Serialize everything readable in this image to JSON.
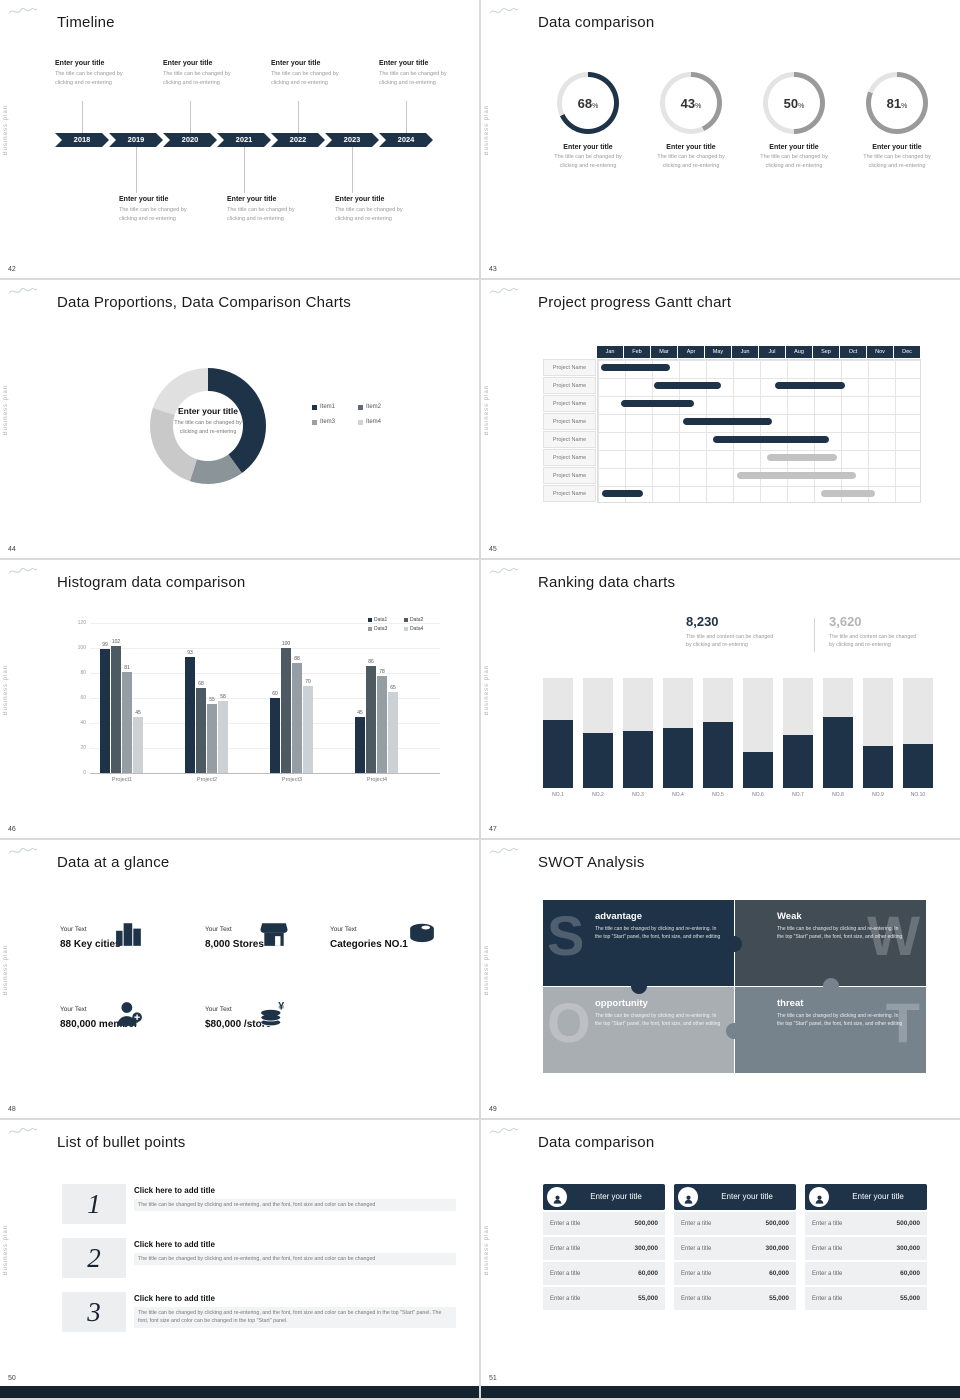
{
  "theme": {
    "dark": "#1e3347",
    "bar_gray": "#c2c2c2",
    "panel": "#eef0f1"
  },
  "common": {
    "side_label": "Business plan",
    "entry_title": "Enter your title",
    "entry_desc_l1": "The title can be changed by",
    "entry_desc_l2": "clicking and re-entering"
  },
  "slides": {
    "s42": {
      "page": "42",
      "title": "Timeline",
      "years": [
        "2018",
        "2019",
        "2020",
        "2021",
        "2022",
        "2023",
        "2024"
      ],
      "top_entries": [
        0,
        2,
        4,
        6
      ],
      "bottom_entries": [
        1,
        3,
        5
      ]
    },
    "s43": {
      "page": "43",
      "title": "Data comparison",
      "chart_data": {
        "type": "donut",
        "values": [
          68,
          43,
          50,
          81
        ],
        "unit": "%",
        "colors": [
          "#1e3347",
          "#9a9a9a",
          "#9a9a9a",
          "#9a9a9a"
        ],
        "track": "#e4e4e4"
      }
    },
    "s44": {
      "page": "44",
      "title": "Data Proportions, Data Comparison Charts",
      "center_title": "Enter your title",
      "center_desc_l1": "The title can be changed by",
      "center_desc_l2": "clicking and re-entering",
      "chart_data": {
        "type": "pie",
        "labels": [
          "Item1",
          "Item2",
          "Item3",
          "Item4"
        ],
        "values": [
          40,
          15,
          25,
          20
        ],
        "colors": [
          "#1e3347",
          "#8b9499",
          "#c9c9c9",
          "#e0e0e0"
        ],
        "legend_colors": [
          "#1e3347",
          "#5f6a72",
          "#9aa1a6",
          "#d2d2d2"
        ]
      }
    },
    "s45": {
      "page": "45",
      "title": "Project progress Gantt chart",
      "months": [
        "Jan",
        "Feb",
        "Mar",
        "Apr",
        "May",
        "Jun",
        "Jul",
        "Aug",
        "Sep",
        "Oct",
        "Nov",
        "Dec"
      ],
      "row_label": "Project Name",
      "rows": 8,
      "bars": [
        {
          "row": 0,
          "start": 0.15,
          "end": 2.7,
          "color": "dark"
        },
        {
          "row": 1,
          "start": 2.1,
          "end": 4.6,
          "color": "dark"
        },
        {
          "row": 1,
          "start": 6.6,
          "end": 9.2,
          "color": "dark"
        },
        {
          "row": 2,
          "start": 0.9,
          "end": 3.6,
          "color": "dark"
        },
        {
          "row": 3,
          "start": 3.2,
          "end": 6.5,
          "color": "dark"
        },
        {
          "row": 4,
          "start": 4.3,
          "end": 8.6,
          "color": "dark"
        },
        {
          "row": 5,
          "start": 6.3,
          "end": 8.9,
          "color": "gray"
        },
        {
          "row": 6,
          "start": 5.2,
          "end": 9.6,
          "color": "gray"
        },
        {
          "row": 7,
          "start": 0.2,
          "end": 1.7,
          "color": "dark"
        },
        {
          "row": 7,
          "start": 8.3,
          "end": 10.3,
          "color": "gray"
        }
      ]
    },
    "s46": {
      "page": "46",
      "title": "Histogram data comparison",
      "chart_data": {
        "type": "bar",
        "categories": [
          "Project1",
          "Project2",
          "Project3",
          "Project4"
        ],
        "series": [
          {
            "name": "Data1",
            "values": [
              99,
              93,
              60,
              45
            ],
            "color": "#1e3347"
          },
          {
            "name": "Data2",
            "values": [
              102,
              68,
              100,
              86
            ],
            "color": "#4e5a62"
          },
          {
            "name": "Data3",
            "values": [
              81,
              55,
              88,
              78
            ],
            "color": "#959ea4"
          },
          {
            "name": "Data4",
            "values": [
              45,
              58,
              70,
              65
            ],
            "color": "#cbd1d4"
          }
        ],
        "ylim": [
          0,
          120
        ],
        "yticks": [
          0,
          20,
          40,
          60,
          80,
          100,
          120
        ]
      }
    },
    "s47": {
      "page": "47",
      "title": "Ranking data charts",
      "stat1": {
        "value": "8,230",
        "desc_l1": "The title and content can be changed",
        "desc_l2": "by clicking and re-entering"
      },
      "stat2": {
        "value": "3,620",
        "desc_l1": "The title and content can be changed",
        "desc_l2": "by clicking and re-entering"
      },
      "chart_data": {
        "type": "bar",
        "categories": [
          "NO.1",
          "NO.2",
          "NO.3",
          "NO.4",
          "NO.5",
          "NO.6",
          "NO.7",
          "NO.8",
          "NO.9",
          "NO.10"
        ],
        "values": [
          62,
          50,
          52,
          55,
          60,
          33,
          48,
          65,
          38,
          40
        ],
        "ylim": [
          0,
          100
        ]
      }
    },
    "s48": {
      "page": "48",
      "title": "Data at a glance",
      "items": [
        {
          "icon": "city-icon",
          "label": "Your Text",
          "value": "88 Key cities"
        },
        {
          "icon": "store-icon",
          "label": "Your Text",
          "value": "8,000 Stores"
        },
        {
          "icon": "categories-icon",
          "label": "Your Text",
          "value": "Categories NO.1"
        },
        {
          "icon": "member-icon",
          "label": "Your Text",
          "value": "880,000 member"
        },
        {
          "icon": "coins-icon",
          "label": "Your Text",
          "value": "$80,000 /store"
        }
      ]
    },
    "s49": {
      "page": "49",
      "title": "SWOT Analysis",
      "quadrants": [
        {
          "letter": "S",
          "name": "advantage",
          "desc": "The title can be changed by clicking and re-entering. In the top \"Start\" panel, the font, font size, and other editing",
          "bg": "#1e3347",
          "letter_side": "left"
        },
        {
          "letter": "W",
          "name": "Weak",
          "desc": "The title can be changed by clicking and re-entering. In the top \"Start\" panel, the font, font size, and other editing",
          "bg": "#414c55",
          "letter_side": "right"
        },
        {
          "letter": "O",
          "name": "opportunity",
          "desc": "The title can be changed by clicking and re-entering. In the top \"Start\" panel, the font, font size, and other editing",
          "bg": "#a9aeb2",
          "letter_side": "left"
        },
        {
          "letter": "T",
          "name": "threat",
          "desc": "The title can be changed by clicking and re-entering. In the top \"Start\" panel, the font, font size, and other editing",
          "bg": "#76838d",
          "letter_side": "right"
        }
      ]
    },
    "s50": {
      "page": "50",
      "title": "List of bullet points",
      "items": [
        {
          "num": "1",
          "title": "Click here to add title",
          "desc": "The title can be changed by clicking and re-entering, and the font, font size and color can be changed"
        },
        {
          "num": "2",
          "title": "Click here to add title",
          "desc": "The title can be changed by clicking and re-entering, and the font, font size and color can be changed"
        },
        {
          "num": "3",
          "title": "Click here to add title",
          "desc": "The title can be changed by clicking and re-entering, and the font, font size and color can be changed in the top \"Start\" panel. The font, font size and color can be changed in the top \"Start\" panel."
        }
      ]
    },
    "s51": {
      "page": "51",
      "title": "Data comparison",
      "card_header": "Enter your title",
      "row_label": "Enter a title",
      "cards": [
        {
          "values": [
            "500,000",
            "300,000",
            "60,000",
            "55,000"
          ]
        },
        {
          "values": [
            "500,000",
            "300,000",
            "60,000",
            "55,000"
          ]
        },
        {
          "values": [
            "500,000",
            "300,000",
            "60,000",
            "55,000"
          ]
        }
      ]
    }
  }
}
